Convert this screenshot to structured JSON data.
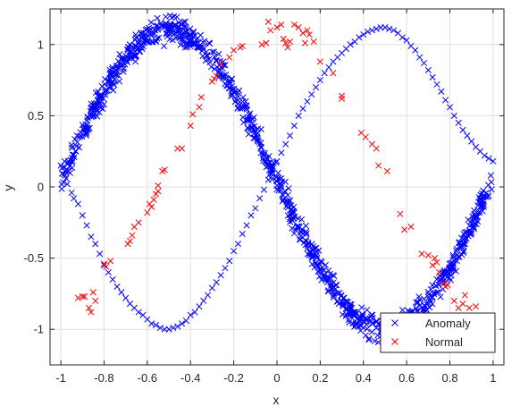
{
  "chart_data": {
    "type": "scatter",
    "title": "",
    "xlabel": "x",
    "ylabel": "y",
    "xlim": [
      -1.05,
      1.05
    ],
    "ylim": [
      -1.25,
      1.25
    ],
    "grid": true,
    "legend_position": "bottom-right",
    "x_ticks": [
      "-1",
      "-0.8",
      "-0.6",
      "-0.4",
      "-0.2",
      "0",
      "0.2",
      "0.4",
      "0.6",
      "0.8",
      "1"
    ],
    "y_ticks": [
      "-1",
      "-0.5",
      "0",
      "0.5",
      "1"
    ],
    "series": [
      {
        "name": "Anomaly",
        "color": "#0000ff",
        "marker": "x",
        "description": "dense band of about 1000 points along y = sin(pi·(x+1)) with noise ±0.05",
        "points": [
          [
            -1.0,
            0.15
          ],
          [
            -0.98,
            0.08
          ],
          [
            -0.97,
            0.02
          ],
          [
            -0.95,
            -0.04
          ],
          [
            -0.94,
            -0.08
          ],
          [
            -0.92,
            -0.12
          ],
          [
            -0.9,
            -0.2
          ],
          [
            -0.88,
            -0.27
          ],
          [
            -0.86,
            -0.35
          ],
          [
            -0.84,
            -0.4
          ],
          [
            -0.82,
            -0.47
          ],
          [
            -0.8,
            -0.55
          ],
          [
            -0.78,
            -0.6
          ],
          [
            -0.76,
            -0.65
          ],
          [
            -0.74,
            -0.7
          ],
          [
            -0.72,
            -0.74
          ],
          [
            -0.7,
            -0.78
          ],
          [
            -0.68,
            -0.82
          ],
          [
            -0.66,
            -0.85
          ],
          [
            -0.64,
            -0.88
          ],
          [
            -0.62,
            -0.9
          ],
          [
            -0.6,
            -0.93
          ],
          [
            -0.58,
            -0.96
          ],
          [
            -0.56,
            -0.97
          ],
          [
            -0.54,
            -0.99
          ],
          [
            -0.52,
            -1.0
          ],
          [
            -0.5,
            -1.0
          ],
          [
            -0.48,
            -0.99
          ],
          [
            -0.46,
            -0.98
          ],
          [
            -0.44,
            -0.96
          ],
          [
            -0.42,
            -0.94
          ],
          [
            -0.4,
            -0.9
          ],
          [
            -0.38,
            -0.88
          ],
          [
            -0.36,
            -0.84
          ],
          [
            -0.34,
            -0.8
          ],
          [
            -0.32,
            -0.76
          ],
          [
            -0.3,
            -0.71
          ],
          [
            -0.28,
            -0.67
          ],
          [
            -0.26,
            -0.62
          ],
          [
            -0.24,
            -0.57
          ],
          [
            -0.22,
            -0.52
          ],
          [
            -0.2,
            -0.45
          ],
          [
            -0.18,
            -0.4
          ],
          [
            -0.16,
            -0.33
          ],
          [
            -0.14,
            -0.27
          ],
          [
            -0.12,
            -0.2
          ],
          [
            -0.1,
            -0.15
          ],
          [
            -0.08,
            -0.08
          ],
          [
            -0.06,
            -0.02
          ],
          [
            -0.04,
            0.05
          ],
          [
            -0.02,
            0.1
          ],
          [
            0.0,
            0.18
          ],
          [
            0.02,
            0.24
          ],
          [
            0.04,
            0.3
          ],
          [
            0.06,
            0.36
          ],
          [
            0.08,
            0.43
          ],
          [
            0.1,
            0.5
          ],
          [
            0.12,
            0.55
          ],
          [
            0.14,
            0.6
          ],
          [
            0.16,
            0.65
          ],
          [
            0.18,
            0.7
          ],
          [
            0.2,
            0.75
          ],
          [
            0.22,
            0.8
          ],
          [
            0.24,
            0.84
          ],
          [
            0.26,
            0.88
          ],
          [
            0.28,
            0.91
          ],
          [
            0.3,
            0.94
          ],
          [
            0.32,
            0.97
          ],
          [
            0.34,
            1.0
          ],
          [
            0.36,
            1.02
          ],
          [
            0.38,
            1.05
          ],
          [
            0.4,
            1.07
          ],
          [
            0.42,
            1.09
          ],
          [
            0.44,
            1.1
          ],
          [
            0.46,
            1.11
          ],
          [
            0.48,
            1.12
          ],
          [
            0.5,
            1.12
          ],
          [
            0.52,
            1.11
          ],
          [
            0.54,
            1.1
          ],
          [
            0.56,
            1.08
          ],
          [
            0.58,
            1.05
          ],
          [
            0.6,
            1.03
          ],
          [
            0.62,
            0.99
          ],
          [
            0.64,
            0.96
          ],
          [
            0.66,
            0.91
          ],
          [
            0.68,
            0.87
          ],
          [
            0.7,
            0.82
          ],
          [
            0.72,
            0.77
          ],
          [
            0.74,
            0.72
          ],
          [
            0.76,
            0.67
          ],
          [
            0.78,
            0.61
          ],
          [
            0.8,
            0.56
          ],
          [
            0.82,
            0.5
          ],
          [
            0.84,
            0.45
          ],
          [
            0.86,
            0.4
          ],
          [
            0.88,
            0.36
          ],
          [
            0.9,
            0.32
          ],
          [
            0.92,
            0.28
          ],
          [
            0.94,
            0.25
          ],
          [
            0.96,
            0.22
          ],
          [
            0.98,
            0.2
          ],
          [
            1.0,
            0.18
          ]
        ]
      },
      {
        "name": "Normal",
        "color": "#ff0000",
        "marker": "x",
        "points": [
          [
            -0.92,
            -0.78
          ],
          [
            -0.9,
            -0.77
          ],
          [
            -0.89,
            -0.77
          ],
          [
            -0.87,
            -0.85
          ],
          [
            -0.86,
            -0.88
          ],
          [
            -0.85,
            -0.74
          ],
          [
            -0.84,
            -0.8
          ],
          [
            -0.8,
            -0.54
          ],
          [
            -0.79,
            -0.56
          ],
          [
            -0.77,
            -0.52
          ],
          [
            -0.69,
            -0.4
          ],
          [
            -0.68,
            -0.38
          ],
          [
            -0.67,
            -0.34
          ],
          [
            -0.66,
            -0.28
          ],
          [
            -0.64,
            -0.25
          ],
          [
            -0.6,
            -0.18
          ],
          [
            -0.59,
            -0.12
          ],
          [
            -0.58,
            -0.14
          ],
          [
            -0.57,
            -0.09
          ],
          [
            -0.56,
            -0.05
          ],
          [
            -0.55,
            -0.03
          ],
          [
            -0.55,
            0.01
          ],
          [
            -0.53,
            0.11
          ],
          [
            -0.52,
            0.12
          ],
          [
            -0.46,
            0.27
          ],
          [
            -0.44,
            0.27
          ],
          [
            -0.4,
            0.43
          ],
          [
            -0.39,
            0.51
          ],
          [
            -0.36,
            0.56
          ],
          [
            -0.35,
            0.63
          ],
          [
            -0.3,
            0.74
          ],
          [
            -0.29,
            0.76
          ],
          [
            -0.28,
            0.78
          ],
          [
            -0.26,
            0.86
          ],
          [
            -0.22,
            0.91
          ],
          [
            -0.2,
            0.96
          ],
          [
            -0.17,
            0.98
          ],
          [
            -0.16,
            0.99
          ],
          [
            -0.07,
            1.0
          ],
          [
            -0.05,
            1.01
          ],
          [
            -0.04,
            1.16
          ],
          [
            -0.03,
            1.1
          ],
          [
            0.0,
            1.12
          ],
          [
            0.02,
            1.14
          ],
          [
            0.03,
            1.04
          ],
          [
            0.04,
            1.01
          ],
          [
            0.05,
            0.98
          ],
          [
            0.06,
            1.02
          ],
          [
            0.08,
            1.14
          ],
          [
            0.1,
            1.12
          ],
          [
            0.12,
            1.08
          ],
          [
            0.13,
            1.01
          ],
          [
            0.14,
            1.1
          ],
          [
            0.15,
            1.07
          ],
          [
            0.17,
            1.02
          ],
          [
            0.2,
            0.88
          ],
          [
            0.26,
            0.8
          ],
          [
            0.3,
            0.64
          ],
          [
            0.3,
            0.62
          ],
          [
            0.39,
            0.38
          ],
          [
            0.41,
            0.35
          ],
          [
            0.44,
            0.3
          ],
          [
            0.46,
            0.27
          ],
          [
            0.47,
            0.15
          ],
          [
            0.51,
            0.11
          ],
          [
            0.57,
            -0.19
          ],
          [
            0.59,
            -0.3
          ],
          [
            0.62,
            -0.28
          ],
          [
            0.67,
            -0.47
          ],
          [
            0.7,
            -0.48
          ],
          [
            0.72,
            -0.55
          ],
          [
            0.73,
            -0.5
          ],
          [
            0.74,
            -0.53
          ],
          [
            0.75,
            -0.6
          ],
          [
            0.77,
            -0.68
          ],
          [
            0.78,
            -0.7
          ],
          [
            0.79,
            -0.69
          ],
          [
            0.82,
            -0.8
          ],
          [
            0.84,
            -0.85
          ],
          [
            0.86,
            -0.82
          ],
          [
            0.87,
            -0.76
          ],
          [
            0.89,
            -0.85
          ],
          [
            0.92,
            -0.84
          ]
        ]
      }
    ]
  }
}
